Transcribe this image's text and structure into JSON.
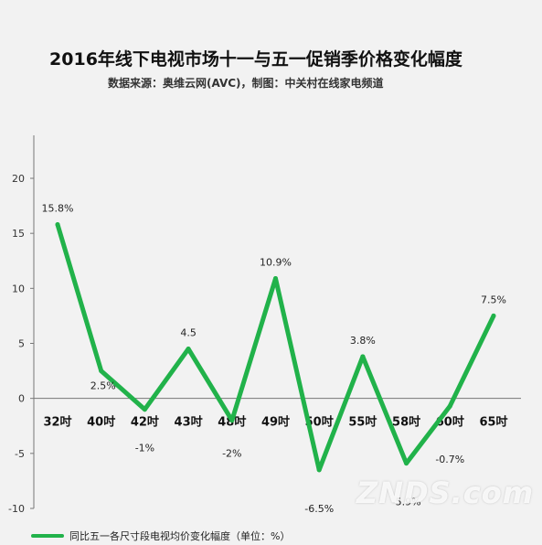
{
  "header": {
    "title": "2016年线下电视市场十一与五一促销季价格变化幅度",
    "subtitle": "数据来源：奥维云网(AVC)，制图：中关村在线家电频道"
  },
  "colors": {
    "line": "#21b24a",
    "axis": "#777777",
    "background": "#f2f2f2"
  },
  "chart_data": {
    "type": "line",
    "categories": [
      "32吋",
      "40吋",
      "42吋",
      "43吋",
      "48吋",
      "49吋",
      "50吋",
      "55吋",
      "58吋",
      "60吋",
      "65吋"
    ],
    "series": [
      {
        "name": "同比五一各尺寸段电视均价变化幅度（单位：%）",
        "values": [
          15.8,
          2.5,
          -1,
          4.5,
          -2,
          10.9,
          -6.5,
          3.8,
          -5.9,
          -0.7,
          7.5
        ]
      }
    ],
    "data_labels": [
      "15.8%",
      "2.5%",
      "-1%",
      "4.5",
      "-2%",
      "10.9%",
      "-6.5%",
      "3.8%",
      "-5.9%",
      "-0.7%",
      "7.5%"
    ],
    "yticks": [
      -10,
      -5,
      0,
      5,
      10,
      15,
      20
    ],
    "ylim": [
      -10,
      20
    ],
    "grid": false,
    "legend_position": "bottom-left"
  },
  "watermark": "ZNDS.com"
}
